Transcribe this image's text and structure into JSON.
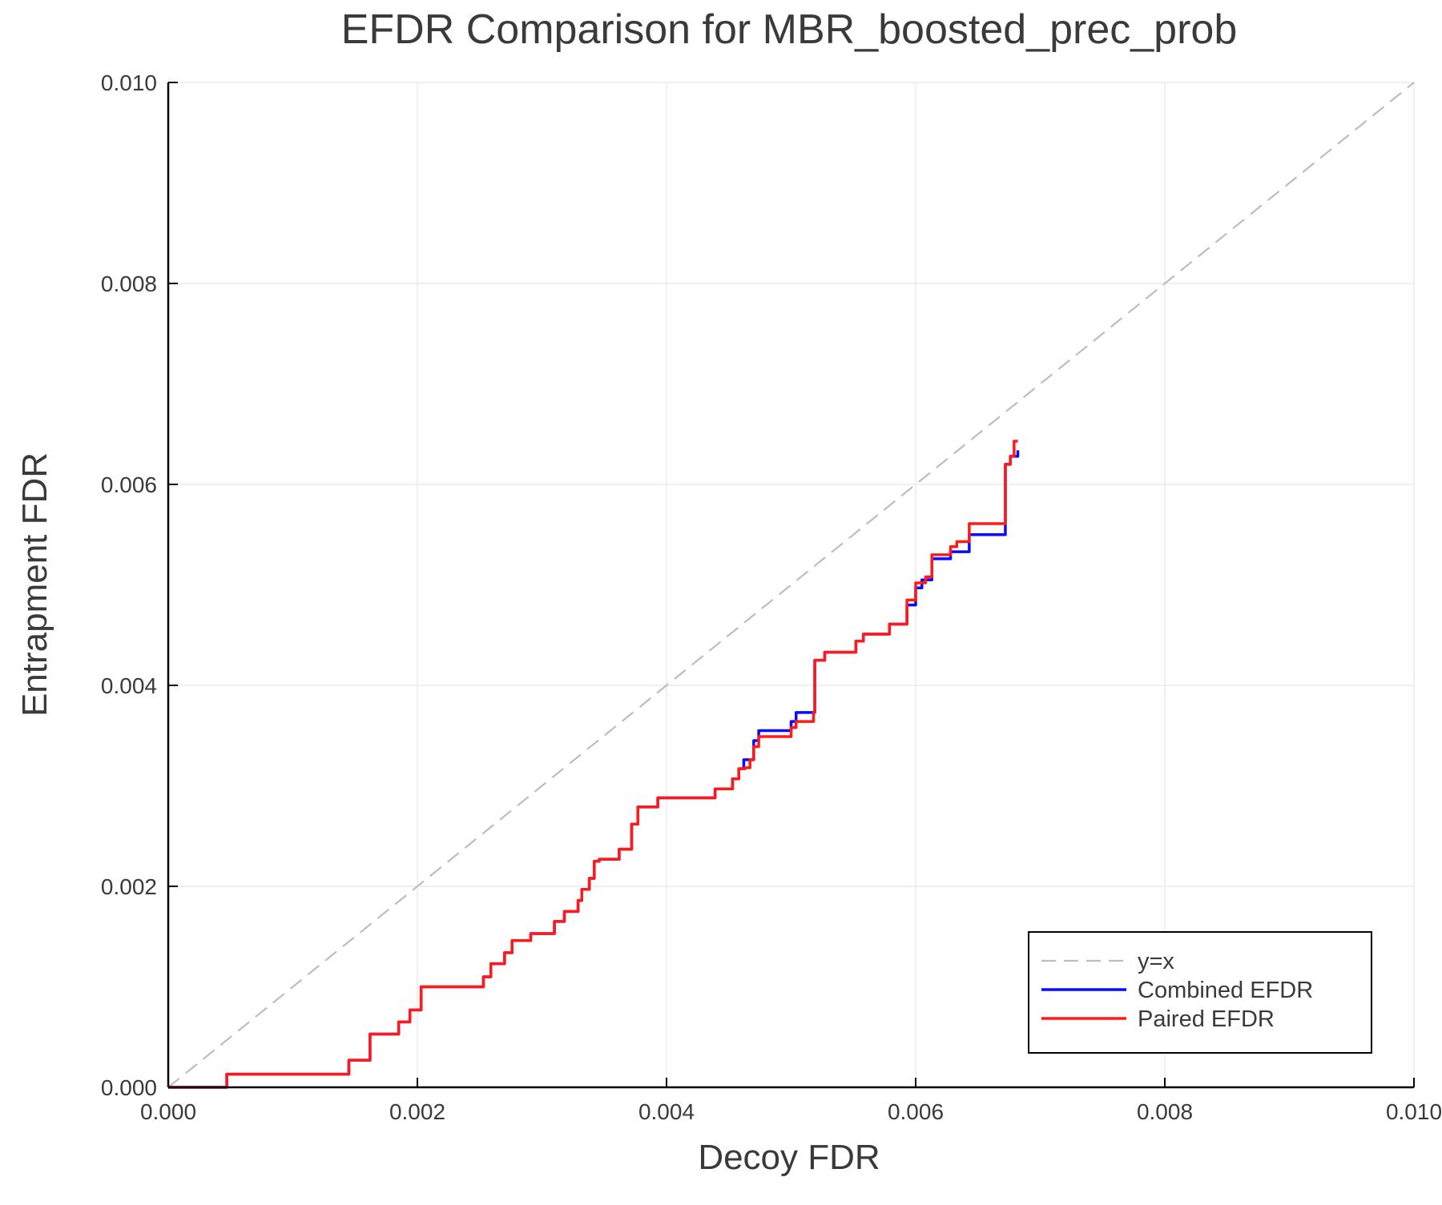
{
  "chart_data": {
    "type": "line",
    "title": "EFDR Comparison for MBR_boosted_prec_prob",
    "xlabel": "Decoy FDR",
    "ylabel": "Entrapment FDR",
    "xlim": [
      0,
      0.01
    ],
    "ylim": [
      0,
      0.01
    ],
    "xticks": [
      "0.000",
      "0.002",
      "0.004",
      "0.006",
      "0.008",
      "0.010"
    ],
    "yticks": [
      "0.000",
      "0.002",
      "0.004",
      "0.006",
      "0.008",
      "0.010"
    ],
    "grid": true,
    "legend_position": "bottom-right",
    "series": [
      {
        "name": "y=x",
        "color": "#bdbdbd",
        "style": "dashed",
        "step": false,
        "x": [
          0,
          0.01
        ],
        "y": [
          0,
          0.01
        ]
      },
      {
        "name": "Combined EFDR",
        "color": "#0a0aff",
        "style": "solid",
        "step": true,
        "x": [
          0,
          0.00047,
          0.00145,
          0.00162,
          0.00185,
          0.00194,
          0.00203,
          0.00253,
          0.00259,
          0.0027,
          0.00276,
          0.00291,
          0.0031,
          0.00318,
          0.00329,
          0.00332,
          0.00338,
          0.00342,
          0.00346,
          0.00362,
          0.00372,
          0.00377,
          0.00393,
          0.00439,
          0.00453,
          0.00458,
          0.00462,
          0.0047,
          0.00474,
          0.005,
          0.00504,
          0.00518,
          0.00519,
          0.00527,
          0.00552,
          0.00558,
          0.00579,
          0.00593,
          0.006,
          0.00605,
          0.00613,
          0.00628,
          0.00643,
          0.00672,
          0.00676,
          0.00682
        ],
        "y": [
          0,
          0.00013,
          0.00027,
          0.00053,
          0.00065,
          0.00077,
          0.001,
          0.0011,
          0.00123,
          0.00134,
          0.00146,
          0.00153,
          0.00165,
          0.00175,
          0.00186,
          0.00197,
          0.00208,
          0.00225,
          0.00227,
          0.00237,
          0.00262,
          0.00279,
          0.00288,
          0.00297,
          0.00307,
          0.00317,
          0.00326,
          0.00345,
          0.00355,
          0.00364,
          0.00373,
          0.00373,
          0.00425,
          0.00433,
          0.00444,
          0.00451,
          0.00461,
          0.0048,
          0.00497,
          0.00505,
          0.00526,
          0.00533,
          0.0055,
          0.0062,
          0.00628,
          0.00634
        ]
      },
      {
        "name": "Paired EFDR",
        "color": "#ff1a1a",
        "style": "solid",
        "step": true,
        "x": [
          0,
          0.00047,
          0.00145,
          0.00162,
          0.00185,
          0.00194,
          0.00203,
          0.00253,
          0.00259,
          0.0027,
          0.00276,
          0.00291,
          0.0031,
          0.00318,
          0.00329,
          0.00332,
          0.00338,
          0.00342,
          0.00346,
          0.00362,
          0.00372,
          0.00377,
          0.00393,
          0.00439,
          0.00453,
          0.00458,
          0.00463,
          0.00467,
          0.0047,
          0.00474,
          0.005,
          0.00504,
          0.00518,
          0.00519,
          0.00527,
          0.00552,
          0.00558,
          0.00579,
          0.00593,
          0.006,
          0.00608,
          0.00613,
          0.00628,
          0.00633,
          0.00643,
          0.00672,
          0.00676,
          0.00679,
          0.00682
        ],
        "y": [
          0,
          0.00013,
          0.00027,
          0.00053,
          0.00065,
          0.00077,
          0.001,
          0.0011,
          0.00123,
          0.00134,
          0.00146,
          0.00153,
          0.00165,
          0.00175,
          0.00186,
          0.00197,
          0.00208,
          0.00225,
          0.00227,
          0.00237,
          0.00262,
          0.00279,
          0.00288,
          0.00297,
          0.00307,
          0.00317,
          0.00318,
          0.00326,
          0.00339,
          0.00349,
          0.00358,
          0.00364,
          0.00373,
          0.00425,
          0.00433,
          0.00444,
          0.00451,
          0.00461,
          0.00485,
          0.00502,
          0.00508,
          0.0053,
          0.00538,
          0.00543,
          0.00561,
          0.0062,
          0.00628,
          0.00643,
          0.00643
        ]
      }
    ]
  }
}
